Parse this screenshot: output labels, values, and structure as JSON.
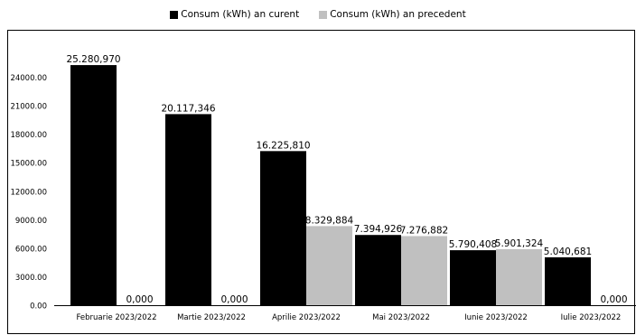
{
  "chart_data": {
    "type": "bar",
    "categories": [
      "Februarie 2023/2022",
      "Martie 2023/2022",
      "Aprilie 2023/2022",
      "Mai 2023/2022",
      "Iunie 2023/2022",
      "Iulie 2023/2022"
    ],
    "series": [
      {
        "name": "Consum (kWh) an curent",
        "color": "#000000",
        "values": [
          25280.97,
          20117.346,
          16225.81,
          7394.926,
          5790.408,
          5040.681
        ],
        "labels": [
          "25.280,970",
          "20.117,346",
          "16.225,810",
          "7.394,926",
          "5.790,408",
          "5.040,681"
        ]
      },
      {
        "name": "Consum (kWh) an precedent",
        "color": "#c0c0c0",
        "values": [
          0,
          0,
          8329.884,
          7276.882,
          5901.324,
          0
        ],
        "labels": [
          "0,000",
          "0,000",
          "8.329,884",
          "7.276,882",
          "5.901,324",
          "0,000"
        ]
      }
    ],
    "y_ticks": [
      "0.00",
      "3000.00",
      "6000.00",
      "9000.00",
      "12000.00",
      "15000.00",
      "18000.00",
      "21000.00",
      "24000.00"
    ],
    "ylim": [
      0,
      27000
    ],
    "legend_position": "top-center",
    "grid": false,
    "title": "",
    "xlabel": "",
    "ylabel": ""
  }
}
